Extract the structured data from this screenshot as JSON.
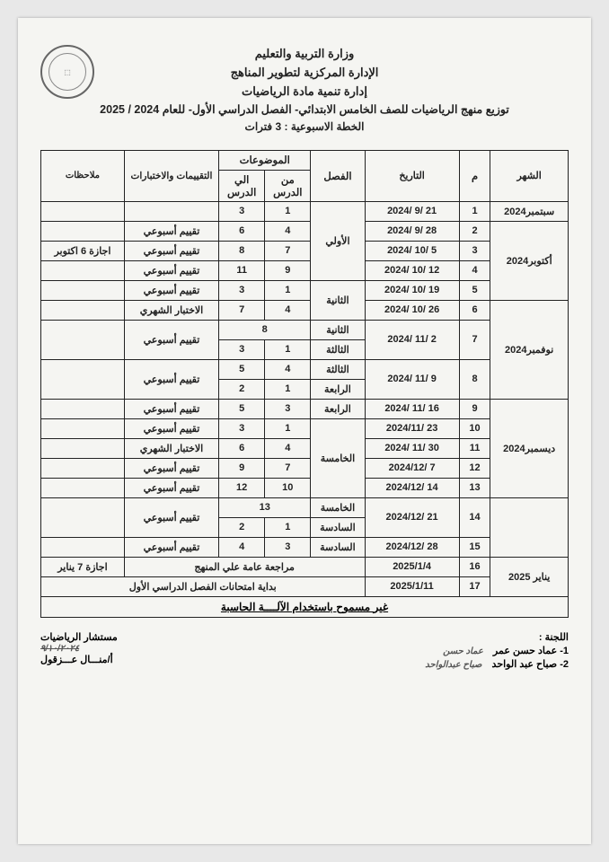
{
  "header": {
    "ministry": "وزارة التربية والتعليم",
    "dept1": "الإدارة المركزية لتطوير المناهج",
    "dept2": "إدارة تنمية مادة الرياضيات",
    "title": "توزيع منهج الرياضيات للصف الخامس الابتدائي- الفصل الدراسي الأول- للعام 2024 / 2025",
    "plan": "الخطة الاسبوعية : 3 فترات"
  },
  "columns": {
    "month": "الشهر",
    "num": "م",
    "date": "التاريخ",
    "unit": "الفصل",
    "topics": "الموضوعات",
    "from": "من الدرس",
    "to": "الي الدرس",
    "evals": "التقييمات والاختبارات",
    "notes": "ملاحظات"
  },
  "months": {
    "sep": "سبتمبر2024",
    "oct": "أكتوبر2024",
    "nov": "نوفمبر2024",
    "dec": "ديسمبر2024",
    "jan": "يناير 2025"
  },
  "rows": [
    {
      "n": "1",
      "date": "2024/ 9/ 21",
      "from": "1",
      "to": "3",
      "eval": "",
      "notes": ""
    },
    {
      "n": "2",
      "date": "2024/ 9/ 28",
      "from": "4",
      "to": "6",
      "eval": "تقييم أسبوعي",
      "notes": ""
    },
    {
      "n": "3",
      "date": "2024/ 10/ 5",
      "from": "7",
      "to": "8",
      "eval": "تقييم أسبوعي",
      "notes": "اجازة 6 اكتوبر"
    },
    {
      "n": "4",
      "date": "2024/ 10/ 12",
      "from": "9",
      "to": "11",
      "eval": "تقييم أسبوعي",
      "notes": ""
    },
    {
      "n": "5",
      "date": "2024/ 10/ 19",
      "from": "1",
      "to": "3",
      "eval": "تقييم أسبوعي",
      "notes": ""
    },
    {
      "n": "6",
      "date": "2024/ 10/ 26",
      "from": "4",
      "to": "7",
      "eval": "الاختبار الشهري",
      "notes": ""
    },
    {
      "n": "7",
      "date": "2024/ 11/ 2",
      "from": "1",
      "to": "3",
      "eval": "تقييم أسبوعي",
      "notes": ""
    },
    {
      "n": "8",
      "date": "2024/ 11/ 9",
      "from": "1",
      "to": "2",
      "eval": "تقييم أسبوعي",
      "notes": ""
    },
    {
      "n": "9",
      "date": "2024/ 11/ 16",
      "from": "3",
      "to": "5",
      "eval": "تقييم أسبوعي",
      "notes": ""
    },
    {
      "n": "10",
      "date": "2024/11/ 23",
      "from": "1",
      "to": "3",
      "eval": "تقييم أسبوعي",
      "notes": ""
    },
    {
      "n": "11",
      "date": "2024/ 11/ 30",
      "from": "4",
      "to": "6",
      "eval": "الاختبار الشهري",
      "notes": ""
    },
    {
      "n": "12",
      "date": "2024/12/ 7",
      "from": "7",
      "to": "9",
      "eval": "تقييم أسبوعي",
      "notes": ""
    },
    {
      "n": "13",
      "date": "2024/12/ 14",
      "from": "10",
      "to": "12",
      "eval": "تقييم أسبوعي",
      "notes": ""
    },
    {
      "n": "14",
      "date": "2024/12/ 21",
      "from": "1",
      "to": "2",
      "eval": "تقييم أسبوعي",
      "notes": ""
    },
    {
      "n": "15",
      "date": "2024/12/ 28",
      "from": "3",
      "to": "4",
      "eval": "تقييم أسبوعي",
      "notes": ""
    },
    {
      "n": "16",
      "date": "2025/1/4",
      "eval": "",
      "notes": "اجازة 7 يناير"
    },
    {
      "n": "17",
      "date": "2025/1/11",
      "eval": "",
      "notes": ""
    }
  ],
  "units": {
    "u1": "الأولي",
    "u2": "الثانية",
    "u3": "الثالثة",
    "u4": "الرابعة",
    "u5": "الخامسة",
    "u6": "السادسة"
  },
  "special": {
    "review": "مراجعة عامة علي المنهج",
    "exams": "بداية امتحانات الفصل الدراسي الأول",
    "nocalc": "غير مسموح باستخدام الآلــــة الحاسبة",
    "eight": "8",
    "thirteen": "13",
    "r7b_from": "4",
    "r7b_to": "5"
  },
  "sig": {
    "committee": "اللجنة :",
    "name1": "1- عماد حسن عمر",
    "name2": "2- صباح عبد الواحد",
    "hand1": "عماد حسن",
    "hand2": "صباح عبدالواحد",
    "advisor": "مستشار الرياضيات",
    "advsig": "٩/١٠/٢٠٢٤",
    "advname": "أ/منـــال عـــزقول"
  }
}
